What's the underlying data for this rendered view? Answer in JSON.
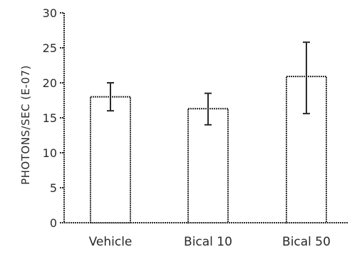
{
  "chart_data": {
    "type": "bar",
    "title": "",
    "xlabel": "",
    "ylabel": "PHOTONS/SEC (E-07)",
    "ylim": [
      0,
      30
    ],
    "yticks": [
      0,
      5,
      10,
      15,
      20,
      25,
      30
    ],
    "categories": [
      "Vehicle",
      "Bical 10",
      "Bical 50"
    ],
    "series": [
      {
        "values": [
          18,
          16.3,
          20.9
        ],
        "error_low": [
          16,
          14,
          15.6
        ],
        "error_high": [
          20,
          18.5,
          25.8
        ]
      }
    ],
    "grid": false,
    "legend": "none",
    "colors": {
      "bar_fill": "#ffffff",
      "stroke": "#2a2a2a"
    }
  }
}
